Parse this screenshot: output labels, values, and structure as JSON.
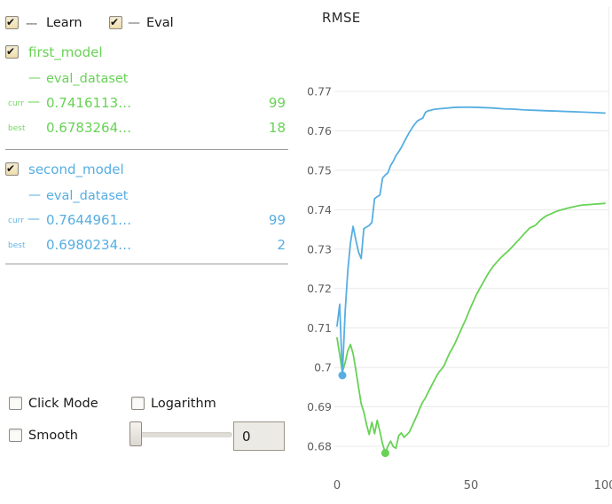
{
  "legend": {
    "learn": {
      "dash": "---",
      "label": "Learn",
      "checked": true
    },
    "eval": {
      "dash": "—",
      "label": "Eval",
      "checked": true
    }
  },
  "models": [
    {
      "checked": true,
      "name": "first_model",
      "color": "#68D256",
      "dataset_dash": "—",
      "dataset_name": "eval_dataset",
      "curr": {
        "label": "curr",
        "dash": "—",
        "value": "0.7416113…",
        "iteration": "99"
      },
      "best": {
        "label": "best",
        "value": "0.6783264…",
        "iteration": "18"
      }
    },
    {
      "checked": true,
      "name": "second_model",
      "color": "#56AEE2",
      "dataset_dash": "—",
      "dataset_name": "eval_dataset",
      "curr": {
        "label": "curr",
        "dash": "—",
        "value": "0.7644961…",
        "iteration": "99"
      },
      "best": {
        "label": "best",
        "value": "0.6980234…",
        "iteration": "2"
      }
    }
  ],
  "controls": {
    "click_mode_label": "Click Mode",
    "click_mode_checked": false,
    "logarithm_label": "Logarithm",
    "logarithm_checked": false,
    "smooth_label": "Smooth",
    "smooth_checked": false,
    "slider_value": "0"
  },
  "chart_data": {
    "type": "line",
    "title": "RMSE",
    "xlabel": "",
    "ylabel": "",
    "xlim": [
      0,
      100
    ],
    "ylim": [
      0.68,
      0.77
    ],
    "grid": true,
    "grid_color": "#e8e8e8",
    "edge_color": "#ededed",
    "tick_color": "#5f5f5f",
    "legend_position": "none",
    "yticks": [
      {
        "v": 0.77,
        "label": "0.77"
      },
      {
        "v": 0.76,
        "label": "0.76"
      },
      {
        "v": 0.75,
        "label": "0.75"
      },
      {
        "v": 0.74,
        "label": "0.74"
      },
      {
        "v": 0.73,
        "label": "0.73"
      },
      {
        "v": 0.72,
        "label": "0.72"
      },
      {
        "v": 0.71,
        "label": "0.71"
      },
      {
        "v": 0.7,
        "label": "0.7"
      },
      {
        "v": 0.69,
        "label": "0.69"
      },
      {
        "v": 0.68,
        "label": "0.68"
      }
    ],
    "xticks": [
      {
        "v": 0,
        "label": "0"
      },
      {
        "v": 50,
        "label": "50"
      },
      {
        "v": 100,
        "label": "100"
      }
    ],
    "series": [
      {
        "name": "first_model eval_dataset",
        "color": "#68D256",
        "style": "solid",
        "best_point": [
          18,
          0.6783
        ],
        "points": [
          [
            0,
            0.7075
          ],
          [
            1,
            0.7032
          ],
          [
            2,
            0.6988
          ],
          [
            3,
            0.7012
          ],
          [
            4,
            0.7042
          ],
          [
            5,
            0.7058
          ],
          [
            6,
            0.7035
          ],
          [
            7,
            0.6995
          ],
          [
            8,
            0.695
          ],
          [
            9,
            0.6908
          ],
          [
            10,
            0.6887
          ],
          [
            11,
            0.6856
          ],
          [
            12,
            0.683
          ],
          [
            13,
            0.6861
          ],
          [
            14,
            0.6832
          ],
          [
            15,
            0.6866
          ],
          [
            16,
            0.6838
          ],
          [
            17,
            0.6806
          ],
          [
            18,
            0.6783
          ],
          [
            19,
            0.6801
          ],
          [
            20,
            0.6813
          ],
          [
            21,
            0.6799
          ],
          [
            22,
            0.6795
          ],
          [
            23,
            0.6827
          ],
          [
            24,
            0.6834
          ],
          [
            25,
            0.6823
          ],
          [
            26,
            0.6829
          ],
          [
            27,
            0.6836
          ],
          [
            28,
            0.6851
          ],
          [
            29,
            0.6866
          ],
          [
            30,
            0.6881
          ],
          [
            31,
            0.6898
          ],
          [
            32,
            0.6912
          ],
          [
            33,
            0.6923
          ],
          [
            34,
            0.6937
          ],
          [
            35,
            0.695
          ],
          [
            36,
            0.6963
          ],
          [
            37,
            0.6976
          ],
          [
            38,
            0.6988
          ],
          [
            39,
            0.6996
          ],
          [
            40,
            0.7005
          ],
          [
            41,
            0.7021
          ],
          [
            42,
            0.7036
          ],
          [
            43,
            0.7048
          ],
          [
            44,
            0.7061
          ],
          [
            45,
            0.7076
          ],
          [
            46,
            0.7091
          ],
          [
            47,
            0.7106
          ],
          [
            48,
            0.7121
          ],
          [
            49,
            0.7138
          ],
          [
            50,
            0.7154
          ],
          [
            51,
            0.7169
          ],
          [
            52,
            0.7184
          ],
          [
            53,
            0.7197
          ],
          [
            54,
            0.7209
          ],
          [
            55,
            0.7221
          ],
          [
            56,
            0.7233
          ],
          [
            57,
            0.7244
          ],
          [
            58,
            0.7254
          ],
          [
            59,
            0.7262
          ],
          [
            60,
            0.727
          ],
          [
            62,
            0.7284
          ],
          [
            64,
            0.7296
          ],
          [
            66,
            0.731
          ],
          [
            68,
            0.7325
          ],
          [
            70,
            0.734
          ],
          [
            72,
            0.7354
          ],
          [
            74,
            0.736
          ],
          [
            76,
            0.7374
          ],
          [
            78,
            0.7384
          ],
          [
            80,
            0.739
          ],
          [
            82,
            0.7396
          ],
          [
            84,
            0.74
          ],
          [
            86,
            0.7404
          ],
          [
            88,
            0.7407
          ],
          [
            90,
            0.741
          ],
          [
            92,
            0.7412
          ],
          [
            94,
            0.7413
          ],
          [
            96,
            0.7414
          ],
          [
            98,
            0.7415
          ],
          [
            100,
            0.7416
          ]
        ]
      },
      {
        "name": "second_model eval_dataset",
        "color": "#56AEE2",
        "style": "solid",
        "best_point": [
          2,
          0.698
        ],
        "points": [
          [
            0,
            0.7105
          ],
          [
            1,
            0.716
          ],
          [
            2,
            0.698
          ],
          [
            3,
            0.714
          ],
          [
            4,
            0.7245
          ],
          [
            5,
            0.7315
          ],
          [
            6,
            0.7358
          ],
          [
            7,
            0.7324
          ],
          [
            8,
            0.7293
          ],
          [
            9,
            0.7276
          ],
          [
            10,
            0.7352
          ],
          [
            11,
            0.7356
          ],
          [
            12,
            0.736
          ],
          [
            13,
            0.7368
          ],
          [
            14,
            0.7428
          ],
          [
            15,
            0.7433
          ],
          [
            16,
            0.7437
          ],
          [
            17,
            0.748
          ],
          [
            18,
            0.7488
          ],
          [
            19,
            0.7494
          ],
          [
            20,
            0.7512
          ],
          [
            21,
            0.7523
          ],
          [
            22,
            0.7537
          ],
          [
            23,
            0.7547
          ],
          [
            24,
            0.7558
          ],
          [
            25,
            0.7571
          ],
          [
            26,
            0.7584
          ],
          [
            27,
            0.7596
          ],
          [
            28,
            0.7607
          ],
          [
            29,
            0.7617
          ],
          [
            30,
            0.7625
          ],
          [
            31,
            0.7629
          ],
          [
            32,
            0.7632
          ],
          [
            33,
            0.7647
          ],
          [
            34,
            0.7651
          ],
          [
            35,
            0.7652
          ],
          [
            36,
            0.7654
          ],
          [
            38,
            0.7656
          ],
          [
            40,
            0.7657
          ],
          [
            43,
            0.7659
          ],
          [
            46,
            0.766
          ],
          [
            50,
            0.766
          ],
          [
            54,
            0.7659
          ],
          [
            58,
            0.7658
          ],
          [
            62,
            0.7656
          ],
          [
            66,
            0.7655
          ],
          [
            70,
            0.7653
          ],
          [
            74,
            0.7652
          ],
          [
            78,
            0.7651
          ],
          [
            82,
            0.765
          ],
          [
            86,
            0.7649
          ],
          [
            90,
            0.7648
          ],
          [
            94,
            0.7647
          ],
          [
            100,
            0.7645
          ]
        ]
      }
    ]
  }
}
